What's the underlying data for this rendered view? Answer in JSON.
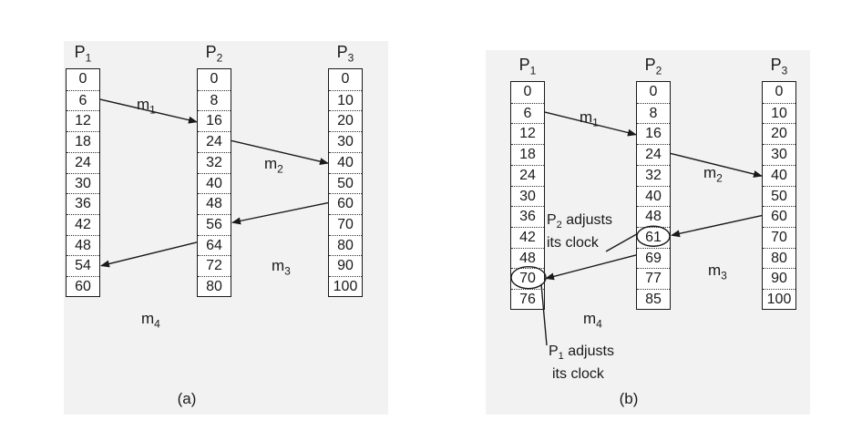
{
  "panels": [
    {
      "caption": "(a)",
      "processes": [
        {
          "label": "P",
          "sub": "1",
          "ticks": [
            "0",
            "6",
            "12",
            "18",
            "24",
            "30",
            "36",
            "42",
            "48",
            "54",
            "60"
          ]
        },
        {
          "label": "P",
          "sub": "2",
          "ticks": [
            "0",
            "8",
            "16",
            "24",
            "32",
            "40",
            "48",
            "56",
            "64",
            "72",
            "80"
          ]
        },
        {
          "label": "P",
          "sub": "3",
          "ticks": [
            "0",
            "10",
            "20",
            "30",
            "40",
            "50",
            "60",
            "70",
            "80",
            "90",
            "100"
          ]
        }
      ],
      "messages": [
        {
          "label": "m",
          "sub": "1"
        },
        {
          "label": "m",
          "sub": "2"
        },
        {
          "label": "m",
          "sub": "3"
        },
        {
          "label": "m",
          "sub": "4"
        }
      ]
    },
    {
      "caption": "(b)",
      "processes": [
        {
          "label": "P",
          "sub": "1",
          "ticks": [
            "0",
            "6",
            "12",
            "18",
            "24",
            "30",
            "36",
            "42",
            "48",
            "70",
            "76"
          ]
        },
        {
          "label": "P",
          "sub": "2",
          "ticks": [
            "0",
            "8",
            "16",
            "24",
            "32",
            "40",
            "48",
            "61",
            "69",
            "77",
            "85"
          ]
        },
        {
          "label": "P",
          "sub": "3",
          "ticks": [
            "0",
            "10",
            "20",
            "30",
            "40",
            "50",
            "60",
            "70",
            "80",
            "90",
            "100"
          ]
        }
      ],
      "messages": [
        {
          "label": "m",
          "sub": "1"
        },
        {
          "label": "m",
          "sub": "2"
        },
        {
          "label": "m",
          "sub": "3"
        },
        {
          "label": "m",
          "sub": "4"
        }
      ],
      "notes": {
        "p2_adjust_line1_pre": "P",
        "p2_adjust_line1_sub": "2",
        "p2_adjust_line1_post": " adjusts",
        "p2_adjust_line2": "its clock",
        "p1_adjust_line1_pre": "P",
        "p1_adjust_line1_sub": "1",
        "p1_adjust_line1_post": " adjusts",
        "p1_adjust_line2": "its clock"
      }
    }
  ]
}
